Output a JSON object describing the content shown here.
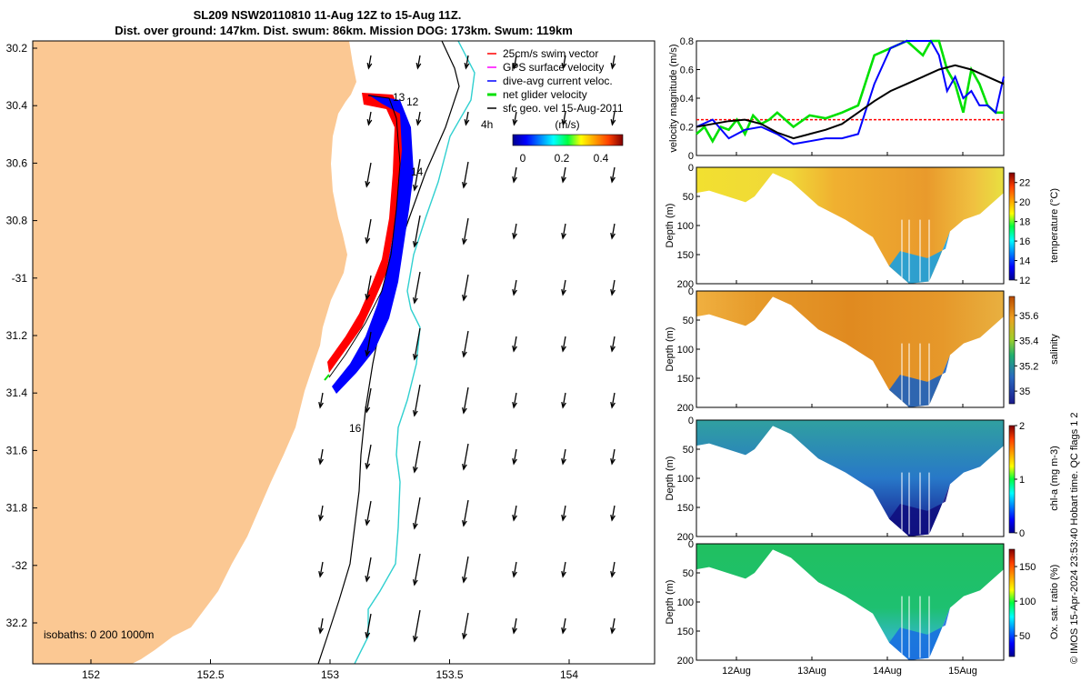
{
  "header": {
    "title_line1": "SL209 NSW20110810 11-Aug 12Z to 15-Aug 11Z.",
    "title_line2": "Dist. over ground: 147km. Dist. swum: 86km. Mission DOG: 173km. Swum: 119km"
  },
  "map": {
    "lat_ticks": [
      "30.2",
      "30.4",
      "30.6",
      "30.8",
      "-31",
      "31.2",
      "31.4",
      "31.6",
      "31.8",
      "-32",
      "32.2"
    ],
    "lon_ticks": [
      "152",
      "152.5",
      "153",
      "153.5",
      "154"
    ],
    "isobaths_label": "isobaths: 0   200  1000m",
    "track_labels": [
      "13",
      "12",
      "14",
      "16",
      "4h"
    ],
    "legend": [
      {
        "label": "25cm/s swim vector",
        "color": "#ff0000"
      },
      {
        "label": "GPS surface velocity",
        "color": "#ff00ff"
      },
      {
        "label": "dive-avg current veloc.",
        "color": "#0000ff"
      },
      {
        "label": "net glider velocity",
        "color": "#00e000"
      },
      {
        "label": "sfc geo. vel 15-Aug-2011",
        "color": "#000000"
      }
    ],
    "colorbar": {
      "unit": "(m/s)",
      "ticks": [
        "0",
        "0.2",
        "0.4"
      ]
    },
    "colors": {
      "land": "#fbc893",
      "sea": "#ffffff",
      "isobath_200": "#000000",
      "isobath_1000": "#30d0d0"
    }
  },
  "side_note": "© IMOS 15-Apr-2024 23:53:40 Hobart time. QC flags 1  2",
  "chart_data": [
    {
      "type": "line",
      "ylabel": "velocity magnitude (m/s)",
      "ylim": [
        0,
        0.8
      ],
      "yticks": [
        "0",
        "0.2",
        "0.4",
        "0.6",
        "0.8"
      ],
      "x_ticks": [
        "12Aug",
        "13Aug",
        "14Aug",
        "15Aug"
      ],
      "reference_line": {
        "value": 0.25,
        "color": "#ff0000"
      },
      "series": [
        {
          "color": "#00e000",
          "x": [
            0,
            0.1,
            0.2,
            0.3,
            0.4,
            0.5,
            0.6,
            0.7,
            0.8,
            0.9,
            1.0,
            1.2,
            1.4,
            1.6,
            1.8,
            2.0,
            2.2,
            2.4,
            2.6,
            2.8,
            2.9,
            3.0,
            3.1,
            3.2,
            3.3,
            3.4,
            3.5,
            3.6,
            3.7,
            3.8
          ],
          "values": [
            0.15,
            0.2,
            0.1,
            0.2,
            0.18,
            0.25,
            0.15,
            0.28,
            0.22,
            0.25,
            0.3,
            0.2,
            0.28,
            0.26,
            0.3,
            0.35,
            0.7,
            0.75,
            0.8,
            0.7,
            0.85,
            0.8,
            0.6,
            0.5,
            0.3,
            0.6,
            0.5,
            0.35,
            0.3,
            0.3
          ]
        },
        {
          "color": "#0000ff",
          "x": [
            0,
            0.2,
            0.4,
            0.6,
            0.8,
            1.0,
            1.2,
            1.4,
            1.6,
            1.8,
            2.0,
            2.2,
            2.4,
            2.6,
            2.8,
            2.9,
            3.0,
            3.1,
            3.2,
            3.3,
            3.4,
            3.5,
            3.6,
            3.7,
            3.8
          ],
          "values": [
            0.2,
            0.25,
            0.12,
            0.18,
            0.2,
            0.15,
            0.08,
            0.1,
            0.12,
            0.12,
            0.15,
            0.5,
            0.75,
            0.85,
            0.8,
            0.85,
            0.7,
            0.45,
            0.55,
            0.4,
            0.45,
            0.35,
            0.35,
            0.3,
            0.55
          ]
        },
        {
          "color": "#000000",
          "x": [
            0,
            0.2,
            0.4,
            0.6,
            0.8,
            1.0,
            1.2,
            1.4,
            1.6,
            1.8,
            2.0,
            2.2,
            2.4,
            2.6,
            2.8,
            3.0,
            3.2,
            3.4,
            3.6,
            3.8
          ],
          "values": [
            0.2,
            0.22,
            0.24,
            0.25,
            0.22,
            0.16,
            0.12,
            0.15,
            0.18,
            0.22,
            0.3,
            0.38,
            0.45,
            0.5,
            0.55,
            0.6,
            0.63,
            0.6,
            0.55,
            0.5
          ]
        }
      ]
    },
    {
      "type": "heatmap",
      "ylabel": "Depth (m)",
      "clabel": "temperature (°C)",
      "ylim": [
        200,
        0
      ],
      "yticks": [
        "0",
        "50",
        "100",
        "150",
        "200"
      ],
      "cticks": [
        "12",
        "14",
        "16",
        "18",
        "20",
        "22"
      ],
      "crange": [
        12,
        23
      ]
    },
    {
      "type": "heatmap",
      "ylabel": "Depth (m)",
      "clabel": "salinity",
      "ylim": [
        200,
        0
      ],
      "yticks": [
        "0",
        "50",
        "100",
        "150",
        "200"
      ],
      "cticks": [
        "35",
        "35.2",
        "35.4",
        "35.6"
      ],
      "crange": [
        34.9,
        35.75
      ]
    },
    {
      "type": "heatmap",
      "ylabel": "Depth (m)",
      "clabel": "chl-a (mg m-3)",
      "ylim": [
        200,
        0
      ],
      "yticks": [
        "0",
        "50",
        "100",
        "150",
        "200"
      ],
      "cticks": [
        "0",
        "1",
        "2"
      ],
      "crange": [
        0,
        2
      ]
    },
    {
      "type": "heatmap",
      "ylabel": "Depth (m)",
      "clabel": "Ox. sat. ratio (%)",
      "ylim": [
        200,
        0
      ],
      "yticks": [
        "0",
        "50",
        "100",
        "150",
        "200"
      ],
      "cticks": [
        "50",
        "100",
        "150"
      ],
      "crange": [
        20,
        175
      ]
    }
  ]
}
